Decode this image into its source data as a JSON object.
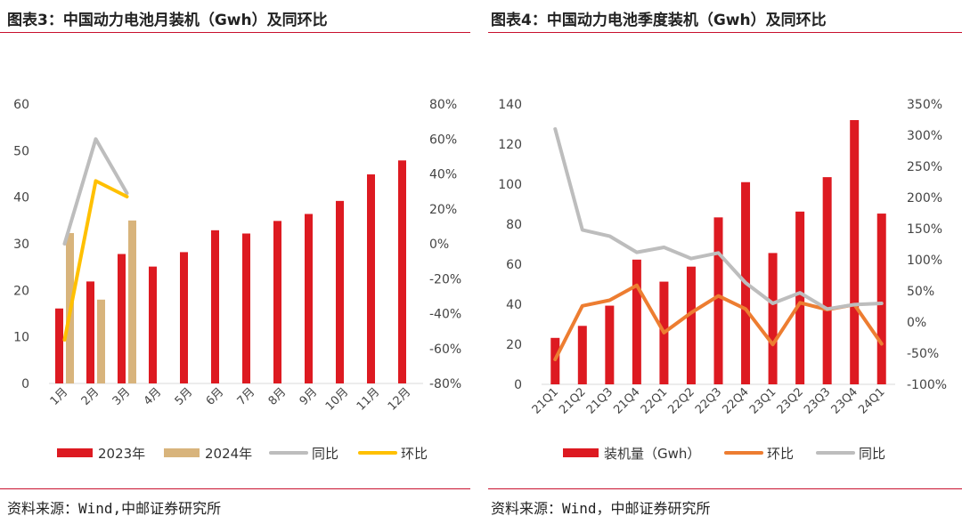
{
  "colors": {
    "red": "#dd1a21",
    "tan": "#d8b47c",
    "gray": "#bdbdbd",
    "yellow": "#ffc000",
    "orange": "#ed7d31",
    "rule": "#c8102e"
  },
  "chart_data": [
    {
      "type": "bar",
      "title": "图表3：中国动力电池月装机（Gwh）及同环比",
      "categories": [
        "1月",
        "2月",
        "3月",
        "4月",
        "5月",
        "6月",
        "7月",
        "8月",
        "9月",
        "10月",
        "11月",
        "12月"
      ],
      "series": [
        {
          "name": "2023年",
          "kind": "bar",
          "axis": "left",
          "color": "#dd1a21",
          "values": [
            16.1,
            21.9,
            27.8,
            25.1,
            28.2,
            32.9,
            32.2,
            34.9,
            36.4,
            39.2,
            44.9,
            47.9
          ]
        },
        {
          "name": "2024年",
          "kind": "bar",
          "axis": "left",
          "color": "#d8b47c",
          "values": [
            32.3,
            18.0,
            35.0,
            null,
            null,
            null,
            null,
            null,
            null,
            null,
            null,
            null
          ]
        },
        {
          "name": "同比",
          "kind": "line",
          "axis": "right",
          "color": "#bdbdbd",
          "values": [
            0,
            60,
            29,
            null,
            null,
            null,
            null,
            null,
            null,
            null,
            null,
            null
          ]
        },
        {
          "name": "环比",
          "kind": "line",
          "axis": "right",
          "color": "#ffc000",
          "values": [
            -55,
            36,
            27,
            null,
            null,
            null,
            null,
            null,
            null,
            null,
            null,
            null
          ]
        }
      ],
      "y_left": {
        "min": 0,
        "max": 60,
        "ticks": [
          "0",
          "10",
          "20",
          "30",
          "40",
          "50",
          "60"
        ]
      },
      "y_right": {
        "min": -80,
        "max": 80,
        "ticks": [
          "-80%",
          "-60%",
          "-40%",
          "-20%",
          "0%",
          "20%",
          "40%",
          "60%",
          "80%"
        ]
      },
      "legend": [
        "2023年",
        "2024年",
        "同比",
        "环比"
      ],
      "legend_position": "bottom",
      "source": "资料来源：Wind,中邮证券研究所"
    },
    {
      "type": "bar",
      "title": "图表4：中国动力电池季度装机（Gwh）及同环比",
      "categories": [
        "21Q1",
        "21Q2",
        "21Q3",
        "21Q4",
        "22Q1",
        "22Q2",
        "22Q3",
        "22Q4",
        "23Q1",
        "23Q2",
        "23Q3",
        "23Q4",
        "24Q1"
      ],
      "series": [
        {
          "name": "装机量（Gwh）",
          "kind": "bar",
          "axis": "left",
          "color": "#dd1a21",
          "values": [
            23.2,
            29.2,
            39.3,
            62.3,
            51.3,
            58.8,
            83.4,
            101.0,
            65.6,
            86.3,
            103.5,
            132.0,
            85.3
          ]
        },
        {
          "name": "环比",
          "kind": "line",
          "axis": "right",
          "color": "#ed7d31",
          "values": [
            -60,
            26,
            35,
            59,
            -17,
            15,
            42,
            21,
            -36,
            31,
            20,
            28,
            -35
          ]
        },
        {
          "name": "同比",
          "kind": "line",
          "axis": "right",
          "color": "#bdbdbd",
          "values": [
            310,
            148,
            138,
            112,
            120,
            102,
            111,
            63,
            30,
            47,
            21,
            28,
            30
          ]
        }
      ],
      "y_left": {
        "min": 0,
        "max": 140,
        "ticks": [
          "0",
          "20",
          "40",
          "60",
          "80",
          "100",
          "120",
          "140"
        ]
      },
      "y_right": {
        "min": -100,
        "max": 350,
        "ticks": [
          "-100%",
          "-50%",
          "0%",
          "50%",
          "100%",
          "150%",
          "200%",
          "250%",
          "300%",
          "350%"
        ]
      },
      "legend": [
        "装机量（Gwh）",
        "环比",
        "同比"
      ],
      "legend_position": "bottom",
      "source": "资料来源：Wind，中邮证券研究所"
    }
  ]
}
